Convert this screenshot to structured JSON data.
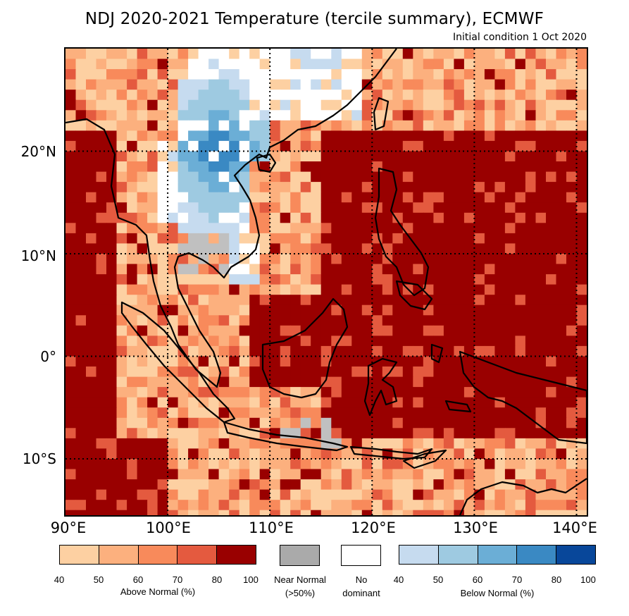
{
  "title": "NDJ 2020-2021 Temperature (tercile summary), ECMWF",
  "subtitle": "Initial condition 1 Oct 2020",
  "map": {
    "lat_labels": [
      "20°N",
      "10°N",
      "0°",
      "10°S"
    ],
    "lon_labels": [
      "90°E",
      "100°E",
      "110°E",
      "120°E",
      "130°E",
      "140°E"
    ],
    "lon_range": [
      90,
      141
    ],
    "lat_range": [
      -15.5,
      30
    ],
    "grid_lons": [
      100,
      110,
      120,
      130,
      140
    ],
    "grid_lats": [
      20,
      10,
      0,
      -10
    ]
  },
  "legend": {
    "above": {
      "caption": "Above Normal (%)",
      "ticks": [
        "40",
        "50",
        "60",
        "70",
        "80",
        "100"
      ],
      "colors": [
        "#fdd0a2",
        "#fcb07e",
        "#f88a5b",
        "#e45a3f",
        "#990000"
      ]
    },
    "near": {
      "caption_line1": "Near Normal",
      "caption_line2": "(>50%)",
      "color": "#aaaaaa"
    },
    "none": {
      "caption_line1": "No",
      "caption_line2": "dominant",
      "color": "#ffffff"
    },
    "below": {
      "caption": "Below Normal (%)",
      "ticks": [
        "40",
        "50",
        "60",
        "70",
        "80",
        "100"
      ],
      "colors": [
        "#c6dbef",
        "#9ecae1",
        "#6baed6",
        "#3a89c3",
        "#08479a"
      ]
    }
  },
  "colors": {
    "above_40": "#fdd0a2",
    "above_50": "#fcb07e",
    "above_60": "#f88a5b",
    "above_70": "#e45a3f",
    "above_80": "#990000",
    "near": "#c0c0c0",
    "none": "#ffffff",
    "below_40": "#c6dbef",
    "below_50": "#9ecae1",
    "below_60": "#6baed6",
    "below_70": "#3a89c3"
  }
}
